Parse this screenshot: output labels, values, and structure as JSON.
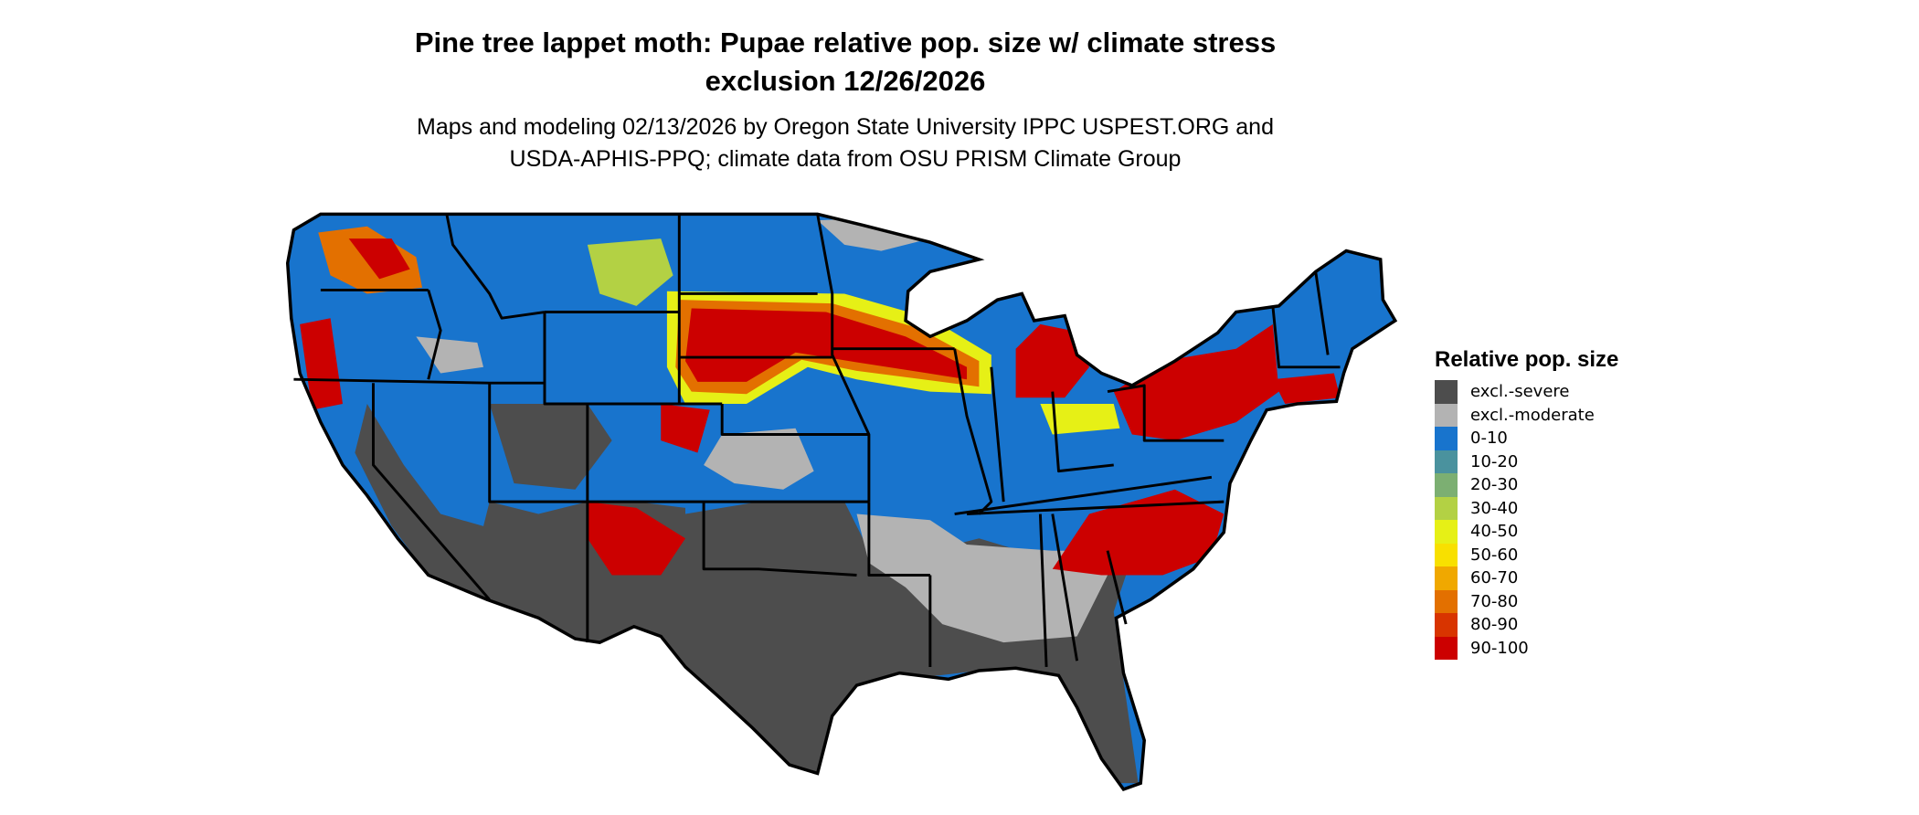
{
  "title": {
    "line1": "Pine tree lappet moth: Pupae relative pop. size w/ climate stress",
    "line2": "exclusion 12/26/2026"
  },
  "subtitle": {
    "line1": "Maps and modeling 02/13/2026 by Oregon State University IPPC USPEST.ORG and",
    "line2": "USDA-APHIS-PPQ; climate data from OSU PRISM Climate Group"
  },
  "legend": {
    "title": "Relative pop. size",
    "items": [
      {
        "label": "excl.-severe",
        "color": "#4d4d4d"
      },
      {
        "label": "excl.-moderate",
        "color": "#b3b3b3"
      },
      {
        "label": "0-10",
        "color": "#1874cd"
      },
      {
        "label": "10-20",
        "color": "#4a929e"
      },
      {
        "label": "20-30",
        "color": "#7caf72"
      },
      {
        "label": "30-40",
        "color": "#b3d144"
      },
      {
        "label": "40-50",
        "color": "#e6f016"
      },
      {
        "label": "50-60",
        "color": "#f8e000"
      },
      {
        "label": "60-70",
        "color": "#f0a800"
      },
      {
        "label": "70-80",
        "color": "#e37000"
      },
      {
        "label": "80-90",
        "color": "#d83400"
      },
      {
        "label": "90-100",
        "color": "#cc0000"
      }
    ]
  },
  "map": {
    "region": "Contiguous United States",
    "state_border_color": "#000000"
  }
}
